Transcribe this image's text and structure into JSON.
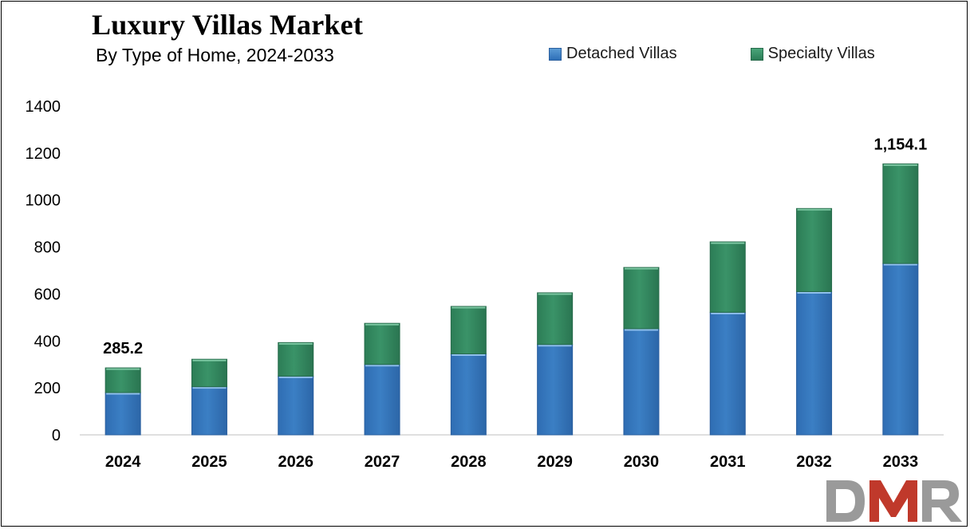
{
  "title": "Luxury Villas Market",
  "subtitle": "By Type of Home, 2024-2033",
  "colors": {
    "detached": "#3b7fc4",
    "specialty": "#3a9368"
  },
  "logo_text": "DMR",
  "chart_data": {
    "type": "bar",
    "stacked": true,
    "categories": [
      "2024",
      "2025",
      "2026",
      "2027",
      "2028",
      "2029",
      "2030",
      "2031",
      "2032",
      "2033"
    ],
    "series": [
      {
        "name": "Detached Villas",
        "values": [
          180,
          205,
          250,
          300,
          345,
          385,
          452,
          522,
          610,
          730
        ]
      },
      {
        "name": "Specialty Villas",
        "values": [
          105.2,
          117,
          143,
          175,
          202,
          220,
          261,
          300,
          354,
          424.1
        ]
      }
    ],
    "yticks": [
      "0",
      "200",
      "400",
      "600",
      "800",
      "1000",
      "1200",
      "1400"
    ],
    "ylim": [
      0,
      1400
    ],
    "annotations": [
      {
        "category": "2024",
        "label": "285.2"
      },
      {
        "category": "2033",
        "label": "1,154.1"
      }
    ],
    "legend": "top-right",
    "grid": false,
    "xlabel": "",
    "ylabel": ""
  }
}
